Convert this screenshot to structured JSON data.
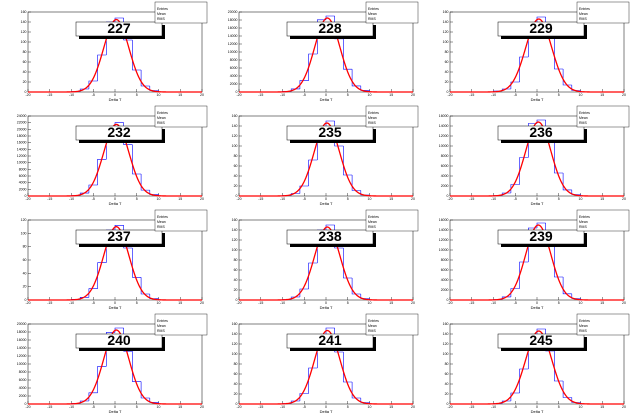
{
  "chart_data": [
    {
      "type": "histogram",
      "title": "227",
      "x_label": "Delta T",
      "stats": [
        "Entries",
        "Mean",
        "RMS"
      ],
      "bins": [
        -12,
        -10,
        -8,
        -6,
        -4,
        -2,
        0,
        2,
        4,
        6,
        8,
        10,
        12
      ],
      "counts": [
        0,
        1,
        6,
        22,
        74,
        140,
        148,
        104,
        44,
        12,
        3,
        0
      ],
      "fit": {
        "constant": 145,
        "mean": 0.3,
        "sigma": 2.9
      },
      "xlim": [
        -20,
        20
      ],
      "xticks": [
        -20,
        -15,
        -10,
        -5,
        0,
        5,
        10,
        15,
        20
      ],
      "ylim": [
        0,
        160
      ],
      "yticks": [
        0,
        20,
        40,
        60,
        80,
        100,
        120,
        140,
        160
      ],
      "color": "#0000ff",
      "fit_color": "#ff0000"
    },
    {
      "type": "histogram",
      "title": "228",
      "x_label": "Delta T",
      "stats": [
        "Entries",
        "Mean",
        "RMS"
      ],
      "bins": [
        -12,
        -10,
        -8,
        -6,
        -4,
        -2,
        0,
        2,
        4,
        6,
        8,
        10,
        12
      ],
      "counts": [
        0,
        130,
        760,
        2850,
        9500,
        18050,
        19000,
        13300,
        5700,
        1520,
        380,
        0
      ],
      "fit": {
        "constant": 18500,
        "mean": 0.3,
        "sigma": 2.9
      },
      "xlim": [
        -20,
        20
      ],
      "xticks": [
        -20,
        -15,
        -10,
        -5,
        0,
        5,
        10,
        15,
        20
      ],
      "ylim": [
        0,
        20000
      ],
      "yticks": [
        0,
        2000,
        4000,
        6000,
        8000,
        10000,
        12000,
        14000,
        16000,
        18000,
        20000
      ],
      "color": "#0000ff",
      "fit_color": "#ff0000"
    },
    {
      "type": "histogram",
      "title": "229",
      "x_label": "Delta T",
      "stats": [
        "Entries",
        "Mean",
        "RMS"
      ],
      "bins": [
        -12,
        -10,
        -8,
        -6,
        -4,
        -2,
        0,
        2,
        4,
        6,
        8,
        10,
        12
      ],
      "counts": [
        0,
        2,
        6,
        20,
        70,
        135,
        150,
        110,
        46,
        14,
        3,
        0
      ],
      "fit": {
        "constant": 146,
        "mean": 0.4,
        "sigma": 3.0
      },
      "xlim": [
        -20,
        20
      ],
      "xticks": [
        -20,
        -15,
        -10,
        -5,
        0,
        5,
        10,
        15,
        20
      ],
      "ylim": [
        0,
        160
      ],
      "yticks": [
        0,
        20,
        40,
        60,
        80,
        100,
        120,
        140,
        160
      ],
      "color": "#0000ff",
      "fit_color": "#ff0000"
    },
    {
      "type": "histogram",
      "title": "232",
      "x_label": "Delta T",
      "stats": [
        "Entries",
        "Mean",
        "RMS"
      ],
      "bins": [
        -12,
        -10,
        -8,
        -6,
        -4,
        -2,
        0,
        2,
        4,
        6,
        8,
        10,
        12
      ],
      "counts": [
        0,
        150,
        880,
        3300,
        11000,
        20900,
        22000,
        15400,
        6600,
        1760,
        440,
        0
      ],
      "fit": {
        "constant": 21500,
        "mean": 0.3,
        "sigma": 2.9
      },
      "xlim": [
        -20,
        20
      ],
      "xticks": [
        -20,
        -15,
        -10,
        -5,
        0,
        5,
        10,
        15,
        20
      ],
      "ylim": [
        0,
        24000
      ],
      "yticks": [
        0,
        2000,
        4000,
        6000,
        8000,
        10000,
        12000,
        14000,
        16000,
        18000,
        20000,
        22000,
        24000
      ],
      "color": "#0000ff",
      "fit_color": "#ff0000"
    },
    {
      "type": "histogram",
      "title": "235",
      "x_label": "Delta T",
      "stats": [
        "Entries",
        "Mean",
        "RMS"
      ],
      "bins": [
        -12,
        -10,
        -8,
        -6,
        -4,
        -2,
        0,
        2,
        4,
        6,
        8,
        10,
        12
      ],
      "counts": [
        0,
        1,
        5,
        20,
        72,
        138,
        150,
        100,
        42,
        11,
        2,
        0
      ],
      "fit": {
        "constant": 146,
        "mean": 0.2,
        "sigma": 2.9
      },
      "xlim": [
        -20,
        20
      ],
      "xticks": [
        -20,
        -15,
        -10,
        -5,
        0,
        5,
        10,
        15,
        20
      ],
      "ylim": [
        0,
        160
      ],
      "yticks": [
        0,
        20,
        40,
        60,
        80,
        100,
        120,
        140,
        160
      ],
      "color": "#0000ff",
      "fit_color": "#ff0000"
    },
    {
      "type": "histogram",
      "title": "236",
      "x_label": "Delta T",
      "stats": [
        "Entries",
        "Mean",
        "RMS"
      ],
      "bins": [
        -12,
        -10,
        -8,
        -6,
        -4,
        -2,
        0,
        2,
        4,
        6,
        8,
        10,
        12
      ],
      "counts": [
        0,
        100,
        600,
        2300,
        7700,
        14500,
        15200,
        10700,
        4600,
        1220,
        300,
        0
      ],
      "fit": {
        "constant": 14800,
        "mean": 0.3,
        "sigma": 2.9
      },
      "xlim": [
        -20,
        20
      ],
      "xticks": [
        -20,
        -15,
        -10,
        -5,
        0,
        5,
        10,
        15,
        20
      ],
      "ylim": [
        0,
        16000
      ],
      "yticks": [
        0,
        2000,
        4000,
        6000,
        8000,
        10000,
        12000,
        14000,
        16000
      ],
      "color": "#0000ff",
      "fit_color": "#ff0000"
    },
    {
      "type": "histogram",
      "title": "237",
      "x_label": "Delta T",
      "stats": [
        "Entries",
        "Mean",
        "RMS"
      ],
      "bins": [
        -12,
        -10,
        -8,
        -6,
        -4,
        -2,
        0,
        2,
        4,
        6,
        8,
        10,
        12
      ],
      "counts": [
        0,
        1,
        4,
        17,
        56,
        105,
        112,
        78,
        34,
        9,
        2,
        0
      ],
      "fit": {
        "constant": 110,
        "mean": 0.3,
        "sigma": 2.9
      },
      "xlim": [
        -20,
        20
      ],
      "xticks": [
        -20,
        -15,
        -10,
        -5,
        0,
        5,
        10,
        15,
        20
      ],
      "ylim": [
        0,
        120
      ],
      "yticks": [
        0,
        20,
        40,
        60,
        80,
        100,
        120
      ],
      "color": "#0000ff",
      "fit_color": "#ff0000"
    },
    {
      "type": "histogram",
      "title": "238",
      "x_label": "Delta T",
      "stats": [
        "Entries",
        "Mean",
        "RMS"
      ],
      "bins": [
        -12,
        -10,
        -8,
        -6,
        -4,
        -2,
        0,
        2,
        4,
        6,
        8,
        10,
        12
      ],
      "counts": [
        0,
        1,
        6,
        22,
        74,
        140,
        150,
        104,
        44,
        12,
        3,
        0
      ],
      "fit": {
        "constant": 146,
        "mean": 0.3,
        "sigma": 2.9
      },
      "xlim": [
        -20,
        20
      ],
      "xticks": [
        -20,
        -15,
        -10,
        -5,
        0,
        5,
        10,
        15,
        20
      ],
      "ylim": [
        0,
        160
      ],
      "yticks": [
        0,
        20,
        40,
        60,
        80,
        100,
        120,
        140,
        160
      ],
      "color": "#0000ff",
      "fit_color": "#ff0000"
    },
    {
      "type": "histogram",
      "title": "239",
      "x_label": "Delta T",
      "stats": [
        "Entries",
        "Mean",
        "RMS"
      ],
      "bins": [
        -12,
        -10,
        -8,
        -6,
        -4,
        -2,
        0,
        2,
        4,
        6,
        8,
        10,
        12
      ],
      "counts": [
        0,
        100,
        610,
        2300,
        7600,
        14400,
        15400,
        10800,
        4600,
        1230,
        300,
        0
      ],
      "fit": {
        "constant": 15000,
        "mean": 0.3,
        "sigma": 2.9
      },
      "xlim": [
        -20,
        20
      ],
      "xticks": [
        -20,
        -15,
        -10,
        -5,
        0,
        5,
        10,
        15,
        20
      ],
      "ylim": [
        0,
        16000
      ],
      "yticks": [
        0,
        2000,
        4000,
        6000,
        8000,
        10000,
        12000,
        14000,
        16000
      ],
      "color": "#0000ff",
      "fit_color": "#ff0000"
    },
    {
      "type": "histogram",
      "title": "240",
      "x_label": "Delta T",
      "stats": [
        "Entries",
        "Mean",
        "RMS"
      ],
      "bins": [
        -12,
        -10,
        -8,
        -6,
        -4,
        -2,
        0,
        2,
        4,
        6,
        8,
        10,
        12
      ],
      "counts": [
        0,
        130,
        750,
        2800,
        9400,
        17900,
        19000,
        13200,
        5600,
        1500,
        380,
        0
      ],
      "fit": {
        "constant": 18500,
        "mean": 0.3,
        "sigma": 2.9
      },
      "xlim": [
        -20,
        20
      ],
      "xticks": [
        -20,
        -15,
        -10,
        -5,
        0,
        5,
        10,
        15,
        20
      ],
      "ylim": [
        0,
        20000
      ],
      "yticks": [
        0,
        2000,
        4000,
        6000,
        8000,
        10000,
        12000,
        14000,
        16000,
        18000,
        20000
      ],
      "color": "#0000ff",
      "fit_color": "#ff0000"
    },
    {
      "type": "histogram",
      "title": "241",
      "x_label": "Delta T",
      "stats": [
        "Entries",
        "Mean",
        "RMS"
      ],
      "bins": [
        -12,
        -10,
        -8,
        -6,
        -4,
        -2,
        0,
        2,
        4,
        6,
        8,
        10,
        12
      ],
      "counts": [
        0,
        1,
        6,
        21,
        72,
        138,
        152,
        104,
        44,
        12,
        3,
        0
      ],
      "fit": {
        "constant": 147,
        "mean": 0.3,
        "sigma": 2.9
      },
      "xlim": [
        -20,
        20
      ],
      "xticks": [
        -20,
        -15,
        -10,
        -5,
        0,
        5,
        10,
        15,
        20
      ],
      "ylim": [
        0,
        160
      ],
      "yticks": [
        0,
        20,
        40,
        60,
        80,
        100,
        120,
        140,
        160
      ],
      "color": "#0000ff",
      "fit_color": "#ff0000"
    },
    {
      "type": "histogram",
      "title": "245",
      "x_label": "Delta T",
      "stats": [
        "Entries",
        "Mean",
        "RMS"
      ],
      "bins": [
        -12,
        -10,
        -8,
        -6,
        -4,
        -2,
        0,
        2,
        4,
        6,
        8,
        10,
        12
      ],
      "counts": [
        0,
        1,
        6,
        22,
        70,
        136,
        150,
        106,
        46,
        13,
        3,
        0
      ],
      "fit": {
        "constant": 146,
        "mean": 0.4,
        "sigma": 3.0
      },
      "xlim": [
        -20,
        20
      ],
      "xticks": [
        -20,
        -15,
        -10,
        -5,
        0,
        5,
        10,
        15,
        20
      ],
      "ylim": [
        0,
        160
      ],
      "yticks": [
        0,
        20,
        40,
        60,
        80,
        100,
        120,
        140,
        160
      ],
      "color": "#0000ff",
      "fit_color": "#ff0000"
    }
  ]
}
